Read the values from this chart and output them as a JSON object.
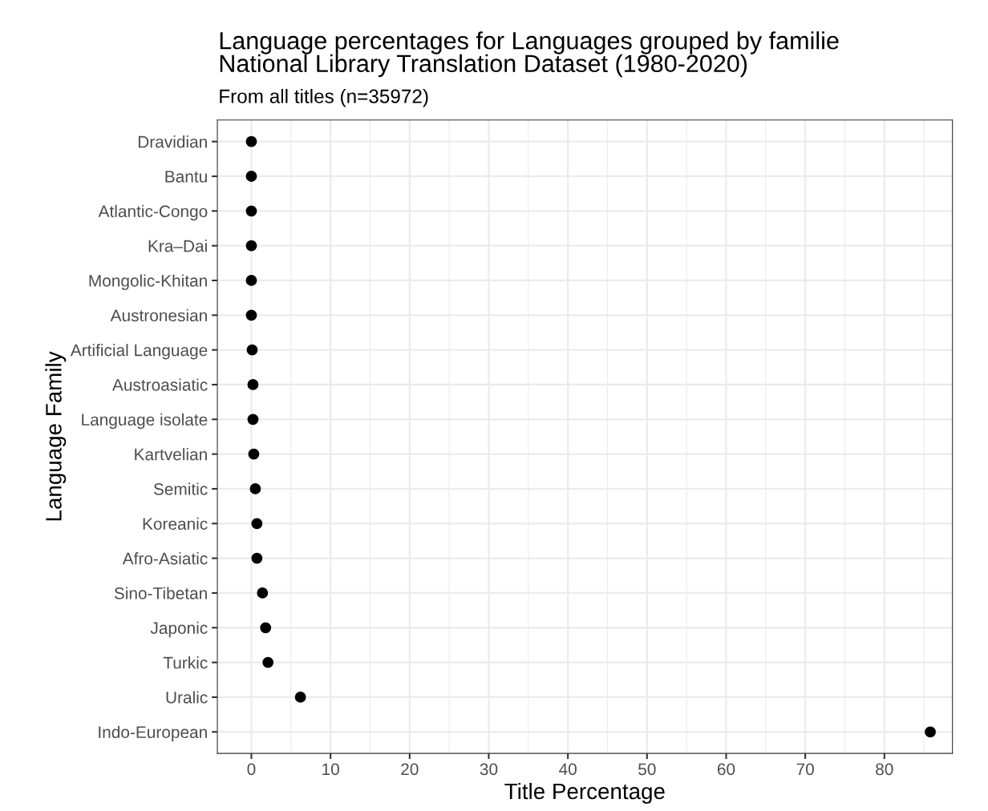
{
  "chart_data": {
    "type": "scatter",
    "title": "Language percentages for Languages grouped by familie\nNational Library Translation Dataset (1980-2020)",
    "subtitle": "From all titles (n=35972)",
    "xlabel": "Title Percentage",
    "ylabel": "Language Family",
    "categories": [
      "Dravidian",
      "Bantu",
      "Atlantic-Congo",
      "Kra–Dai",
      "Mongolic-Khitan",
      "Austronesian",
      "Artificial Language",
      "Austroasiatic",
      "Language isolate",
      "Kartvelian",
      "Semitic",
      "Koreanic",
      "Afro-Asiatic",
      "Sino-Tibetan",
      "Japonic",
      "Turkic",
      "Uralic",
      "Indo-European"
    ],
    "series": [
      {
        "color": "#000000",
        "values": [
          0.0,
          0.0,
          0.0,
          0.0,
          0.0,
          0.0,
          0.1,
          0.2,
          0.2,
          0.3,
          0.5,
          0.7,
          0.7,
          1.4,
          1.8,
          2.1,
          6.2,
          85.8
        ]
      }
    ],
    "xlim": [
      -4.3,
      88.6
    ],
    "xticks": [
      0,
      {
        "value": 5,
        "label": null
      },
      10,
      {
        "value": 15,
        "label": null
      },
      20,
      {
        "value": 25,
        "label": null
      },
      30,
      {
        "value": 35,
        "label": null
      },
      40,
      {
        "value": 45,
        "label": null
      },
      50,
      {
        "value": 55,
        "label": null
      },
      60,
      {
        "value": 65,
        "label": null
      },
      70,
      {
        "value": 75,
        "label": null
      },
      80,
      {
        "value": 85,
        "label": null
      }
    ],
    "grid": true,
    "marker": "circle",
    "legend": false,
    "orientation": "horizontal"
  }
}
